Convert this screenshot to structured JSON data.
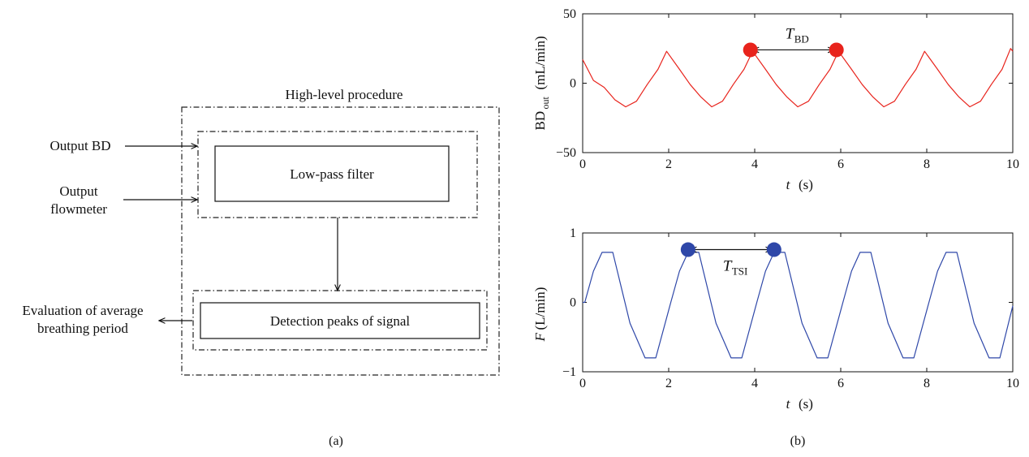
{
  "diagram": {
    "title": "High-level procedure",
    "input_bd": "Output BD",
    "input_flow_line1": "Output",
    "input_flow_line2": "flowmeter",
    "filter_label": "Low-pass filter",
    "detect_label": "Detection peaks of signal",
    "output_line1": "Evaluation of average",
    "output_line2": "breathing period",
    "caption": "(a)"
  },
  "caption_b": "(b)",
  "chart_data": [
    {
      "type": "line",
      "x": [
        0.0,
        0.25,
        0.5,
        0.75,
        1.0,
        1.25,
        1.5,
        1.75,
        1.95,
        2.25,
        2.5,
        2.75,
        3.0,
        3.25,
        3.5,
        3.75,
        3.95,
        4.25,
        4.5,
        4.75,
        5.0,
        5.25,
        5.5,
        5.75,
        5.95,
        6.25,
        6.5,
        6.75,
        7.0,
        7.25,
        7.5,
        7.75,
        7.95,
        8.25,
        8.5,
        8.75,
        9.0,
        9.25,
        9.5,
        9.75,
        9.95,
        10.0
      ],
      "series": [
        {
          "color": "#e8231c",
          "values": [
            17,
            2,
            -3,
            -12,
            -17,
            -13,
            -1,
            10,
            23,
            10,
            -1,
            -10,
            -17,
            -13,
            -1,
            10,
            23,
            10,
            -1,
            -10,
            -17,
            -13,
            -1,
            10,
            23,
            10,
            -1,
            -10,
            -17,
            -13,
            -1,
            10,
            23,
            10,
            -1,
            -10,
            -17,
            -13,
            -1,
            10,
            25,
            23
          ]
        }
      ],
      "markers": [
        {
          "x": 3.9,
          "y": 24
        },
        {
          "x": 5.9,
          "y": 24
        }
      ],
      "annotation": {
        "main": "T",
        "sub": "BD"
      },
      "ylabel_main": "BD",
      "ylabel_sub": "out",
      "ylabel_unit": "(mL/min)",
      "xlabel_main": "t",
      "xlabel_unit": "(s)",
      "xlim": [
        0,
        10
      ],
      "ylim": [
        -50,
        50
      ],
      "xticks": [
        "0",
        "2",
        "4",
        "6",
        "8",
        "10"
      ],
      "yticks": [
        "50",
        "0",
        "−50"
      ]
    },
    {
      "type": "line",
      "x": [
        0.0,
        0.05,
        0.25,
        0.45,
        0.7,
        1.1,
        1.45,
        1.7,
        2.05,
        2.25,
        2.45,
        2.7,
        3.1,
        3.45,
        3.7,
        4.05,
        4.25,
        4.45,
        4.7,
        5.1,
        5.45,
        5.7,
        6.05,
        6.25,
        6.45,
        6.7,
        7.1,
        7.45,
        7.7,
        8.05,
        8.25,
        8.45,
        8.7,
        9.1,
        9.45,
        9.7,
        10.0
      ],
      "series": [
        {
          "color": "#2e47a8",
          "values": [
            0.0,
            0.0,
            0.45,
            0.72,
            0.72,
            -0.3,
            -0.8,
            -0.8,
            0.0,
            0.45,
            0.72,
            0.72,
            -0.3,
            -0.8,
            -0.8,
            0.0,
            0.45,
            0.72,
            0.72,
            -0.3,
            -0.8,
            -0.8,
            0.0,
            0.45,
            0.72,
            0.72,
            -0.3,
            -0.8,
            -0.8,
            0.0,
            0.45,
            0.72,
            0.72,
            -0.3,
            -0.8,
            -0.8,
            -0.05
          ]
        }
      ],
      "markers": [
        {
          "x": 2.45,
          "y": 0.76
        },
        {
          "x": 4.45,
          "y": 0.76
        }
      ],
      "annotation": {
        "main": "T",
        "sub": "TSI"
      },
      "ylabel_main": "F",
      "ylabel_unit": "(L/min)",
      "xlabel_main": "t",
      "xlabel_unit": "(s)",
      "xlim": [
        0,
        10
      ],
      "ylim": [
        -1,
        1
      ],
      "xticks": [
        "0",
        "2",
        "4",
        "6",
        "8",
        "10"
      ],
      "yticks": [
        "1",
        "0",
        "−1"
      ]
    }
  ]
}
